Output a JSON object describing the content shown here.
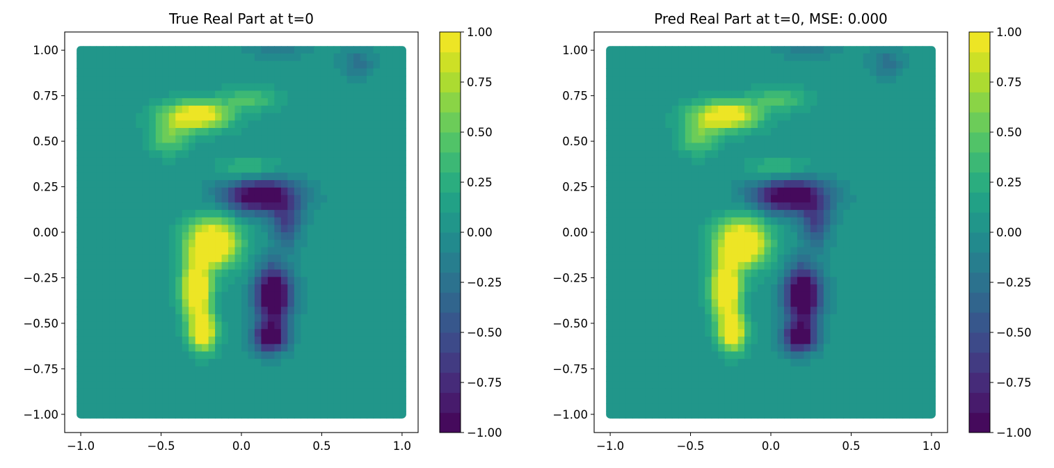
{
  "chart_data": [
    {
      "type": "heatmap",
      "title": "True Real Part at t=0",
      "xlim": [
        -1.1,
        1.1
      ],
      "ylim": [
        -1.1,
        1.1
      ],
      "x_ticks": [
        "−1.0",
        "−0.5",
        "0.0",
        "0.5",
        "1.0"
      ],
      "y_ticks": [
        "−1.00",
        "−0.75",
        "−0.50",
        "−0.25",
        "0.00",
        "0.25",
        "0.50",
        "0.75",
        "1.00"
      ],
      "colorbar": {
        "range": [
          -1.0,
          1.0
        ],
        "colormap": "viridis",
        "ticks": [
          "−1.00",
          "−0.75",
          "−0.50",
          "−0.25",
          "0.00",
          "0.25",
          "0.50",
          "0.75",
          "1.00"
        ]
      },
      "domain": {
        "x": [
          -1.0,
          1.0
        ],
        "y": [
          -1.0,
          1.0
        ]
      },
      "grid": false
    },
    {
      "type": "heatmap",
      "title": "Pred Real Part at t=0, MSE: 0.000",
      "xlim": [
        -1.1,
        1.1
      ],
      "ylim": [
        -1.1,
        1.1
      ],
      "x_ticks": [
        "−1.0",
        "−0.5",
        "0.0",
        "0.5",
        "1.0"
      ],
      "y_ticks": [
        "−1.00",
        "−0.75",
        "−0.50",
        "−0.25",
        "0.00",
        "0.25",
        "0.50",
        "0.75",
        "1.00"
      ],
      "colorbar": {
        "range": [
          -1.0,
          1.0
        ],
        "colormap": "viridis",
        "ticks": [
          "−1.00",
          "−0.75",
          "−0.50",
          "−0.25",
          "0.00",
          "0.25",
          "0.50",
          "0.75",
          "1.00"
        ]
      },
      "domain": {
        "x": [
          -1.0,
          1.0
        ],
        "y": [
          -1.0,
          1.0
        ]
      },
      "grid": false
    }
  ]
}
